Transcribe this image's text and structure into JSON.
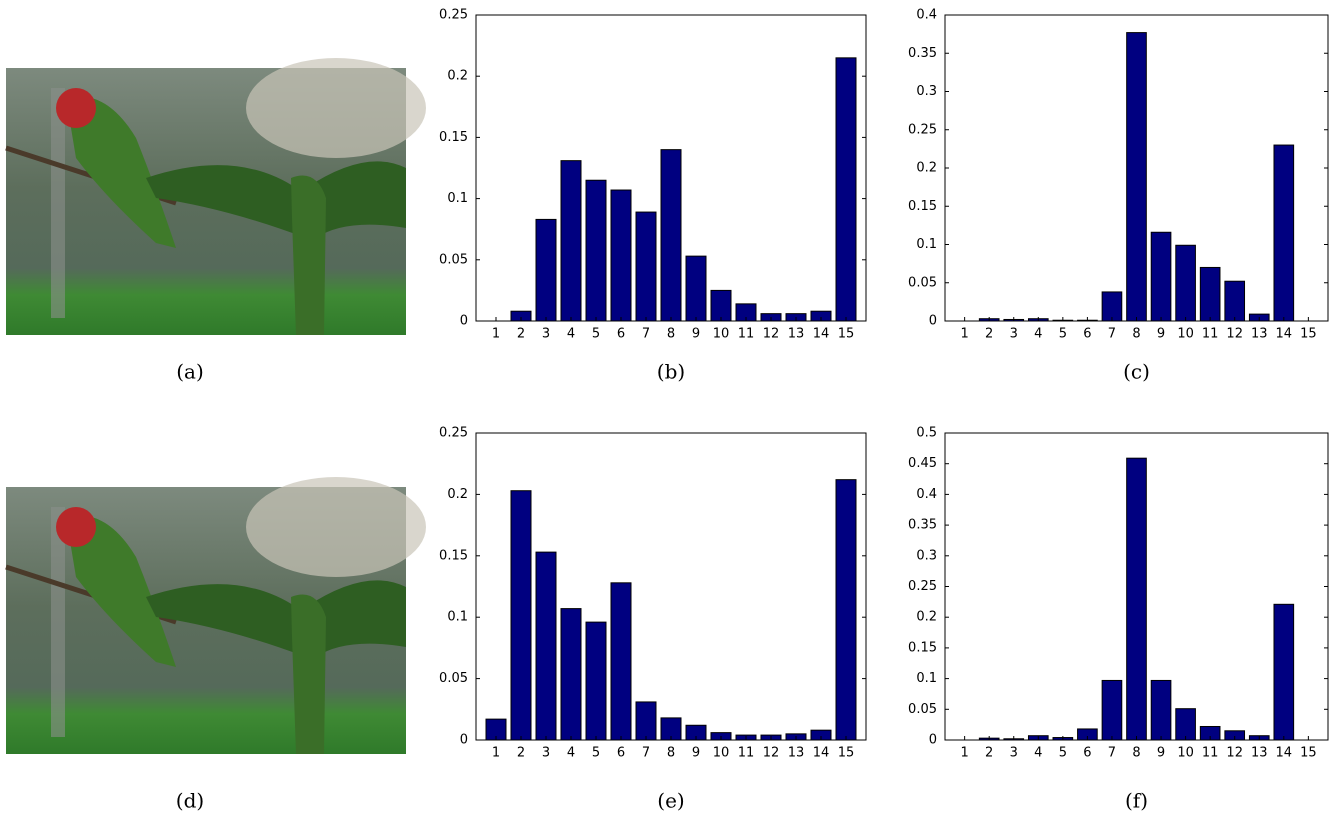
{
  "images": [
    {
      "caption": "(a)"
    },
    {
      "caption": "(d)"
    }
  ],
  "chart_data": [
    {
      "type": "bar",
      "caption": "(b)",
      "color": "#000080",
      "categories": [
        "1",
        "2",
        "3",
        "4",
        "5",
        "6",
        "7",
        "8",
        "9",
        "10",
        "11",
        "12",
        "13",
        "14",
        "15"
      ],
      "values": [
        0,
        0.008,
        0.083,
        0.131,
        0.115,
        0.107,
        0.089,
        0.14,
        0.053,
        0.025,
        0.014,
        0.006,
        0.006,
        0.008,
        0.215
      ],
      "ylim": [
        0,
        0.25
      ],
      "yticks": [
        0,
        0.05,
        0.1,
        0.15,
        0.2,
        0.25
      ]
    },
    {
      "type": "bar",
      "caption": "(c)",
      "color": "#000080",
      "categories": [
        "1",
        "2",
        "3",
        "4",
        "5",
        "6",
        "7",
        "8",
        "9",
        "10",
        "11",
        "12",
        "13",
        "14",
        "15"
      ],
      "values": [
        0,
        0.003,
        0.002,
        0.003,
        0.001,
        0.001,
        0.038,
        0.377,
        0.116,
        0.099,
        0.07,
        0.052,
        0.009,
        0.23,
        0
      ],
      "ylim": [
        0,
        0.4
      ],
      "yticks": [
        0,
        0.05,
        0.1,
        0.15,
        0.2,
        0.25,
        0.3,
        0.35,
        0.4
      ]
    },
    {
      "type": "bar",
      "caption": "(e)",
      "color": "#000080",
      "categories": [
        "1",
        "2",
        "3",
        "4",
        "5",
        "6",
        "7",
        "8",
        "9",
        "10",
        "11",
        "12",
        "13",
        "14",
        "15"
      ],
      "values": [
        0.017,
        0.203,
        0.153,
        0.107,
        0.096,
        0.128,
        0.031,
        0.018,
        0.012,
        0.006,
        0.004,
        0.004,
        0.005,
        0.008,
        0.212
      ],
      "ylim": [
        0,
        0.25
      ],
      "yticks": [
        0,
        0.05,
        0.1,
        0.15,
        0.2,
        0.25
      ]
    },
    {
      "type": "bar",
      "caption": "(f)",
      "color": "#000080",
      "categories": [
        "1",
        "2",
        "3",
        "4",
        "5",
        "6",
        "7",
        "8",
        "9",
        "10",
        "11",
        "12",
        "13",
        "14",
        "15"
      ],
      "values": [
        0,
        0.003,
        0.002,
        0.007,
        0.004,
        0.018,
        0.097,
        0.459,
        0.097,
        0.051,
        0.022,
        0.015,
        0.007,
        0.221,
        0
      ],
      "ylim": [
        0,
        0.5
      ],
      "yticks": [
        0,
        0.05,
        0.1,
        0.15,
        0.2,
        0.25,
        0.3,
        0.35,
        0.4,
        0.45,
        0.5
      ]
    }
  ]
}
